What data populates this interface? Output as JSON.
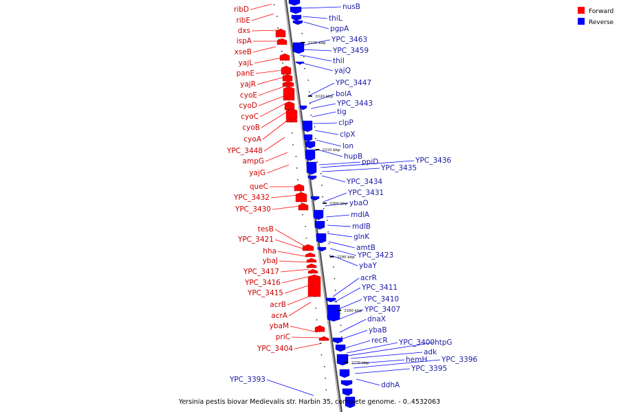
{
  "caption": "Yersinia pestis biovar Medievalis str. Harbin 35, complete genome. - 0..4532063",
  "legend": [
    {
      "label": "Forward",
      "color": "#ff0000"
    },
    {
      "label": "Reverse",
      "color": "#0000ff"
    }
  ],
  "colors": {
    "forward": "#ff0000",
    "reverse": "#0000ff",
    "forward_text": "#cc0000",
    "reverse_text": "#1a1aa6",
    "backbone": "#777777"
  },
  "ticks": [
    "3330 kbp",
    "3320 kbp",
    "3310 kbp",
    "3300 kbp",
    "3290 kbp",
    "3280 kbp",
    "3270 kbp"
  ],
  "forward_genes": [
    "ribD",
    "ribE",
    "dxs",
    "ispA",
    "xseB",
    "yajL",
    "panE",
    "yajR",
    "cyoE",
    "cyoD",
    "cyoC",
    "cyoB",
    "cyoA",
    "YPC_3448",
    "ampG",
    "yajG",
    "queC",
    "YPC_3432",
    "YPC_3430",
    "tesB",
    "YPC_3421",
    "hha",
    "ybaJ",
    "YPC_3417",
    "YPC_3416",
    "YPC_3415",
    "acrB",
    "acrA",
    "ybaM",
    "priC",
    "YPC_3404"
  ],
  "reverse_genes": [
    "nusB",
    "thiL",
    "pgpA",
    "YPC_3463",
    "YPC_3459",
    "thiI",
    "yajQ",
    "YPC_3447",
    "bolA",
    "YPC_3443",
    "tig",
    "clpP",
    "clpX",
    "lon",
    "hupB",
    "ppiD",
    "YPC_3436",
    "YPC_3435",
    "YPC_3434",
    "YPC_3431",
    "ybaO",
    "mdlA",
    "mdlB",
    "glnK",
    "amtB",
    "YPC_3423",
    "ybaY",
    "acrR",
    "YPC_3411",
    "YPC_3410",
    "YPC_3407",
    "dnaX",
    "ybaB",
    "recR",
    "YPC_3400",
    "htpG",
    "adk",
    "hemH",
    "YPC_3396",
    "YPC_3395",
    "ddhA",
    "YPC_3393"
  ]
}
